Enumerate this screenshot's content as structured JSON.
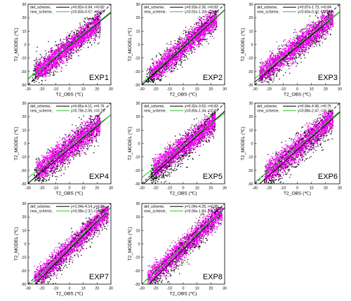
{
  "figure": {
    "colors": {
      "def_points": "#000000",
      "new_points": "#ff00ff",
      "def_line": "#000000",
      "new_line": "#22cc22",
      "one_to_one": "#000000",
      "frame": "#000000"
    },
    "legend_placement": "top-left",
    "tick_labels": {
      "x": [
        "-30",
        "-20",
        "-10",
        "0",
        "10",
        "20",
        "30"
      ],
      "y": [
        "-30",
        "-20",
        "-10",
        "0",
        "10",
        "20",
        "30"
      ]
    }
  },
  "chart_data": [
    {
      "type": "scatter",
      "panel": "EXP1",
      "label": "EXP1",
      "xlabel": "T2_OBS (℃)",
      "ylabel": "T2_MODEL (℃)",
      "xlim": [
        -30,
        30
      ],
      "ylim": [
        -30,
        30
      ],
      "reference_line": "y=x (dashed)",
      "grid": false,
      "legend": "top-left",
      "series": [
        {
          "name": "def_scheme",
          "color": "#000000",
          "equation": "y=0.82x-0.94, r=0.82",
          "slope": 0.82,
          "intercept": -0.94,
          "r": 0.82,
          "x_range": [
            -27,
            22
          ],
          "y_range": [
            -28,
            26
          ]
        },
        {
          "name": "new_scheme",
          "color": "#ff00ff",
          "equation": "y=0.83x-0.57, r=0.89",
          "slope": 0.83,
          "intercept": -0.57,
          "r": 0.89,
          "x_range": [
            -25,
            22
          ],
          "y_range": [
            -24,
            25
          ]
        }
      ]
    },
    {
      "type": "scatter",
      "panel": "EXP2",
      "label": "EXP2",
      "xlabel": "T2_OBS (℃)",
      "ylabel": "T2_MODEL (℃)",
      "xlim": [
        -30,
        30
      ],
      "ylim": [
        -30,
        30
      ],
      "reference_line": "y=x (dashed)",
      "grid": false,
      "legend": "top-left",
      "series": [
        {
          "name": "def_scheme",
          "color": "#000000",
          "equation": "y=0.93x-2.26, r=0.82",
          "slope": 0.93,
          "intercept": -2.26,
          "r": 0.82,
          "x_range": [
            -27,
            24
          ],
          "y_range": [
            -28,
            26
          ]
        },
        {
          "name": "new_scheme",
          "color": "#ff00ff",
          "equation": "y=0.91x-1.32, r=0.88",
          "slope": 0.91,
          "intercept": -1.32,
          "r": 0.88,
          "x_range": [
            -25,
            24
          ],
          "y_range": [
            -25,
            26
          ]
        }
      ]
    },
    {
      "type": "scatter",
      "panel": "EXP3",
      "label": "EXP3",
      "xlabel": "T2_OBS (℃)",
      "ylabel": "T2_MODEL (℃)",
      "xlim": [
        -30,
        30
      ],
      "ylim": [
        -30,
        30
      ],
      "reference_line": "y=x (dashed)",
      "grid": false,
      "legend": "top-left",
      "series": [
        {
          "name": "def_scheme",
          "color": "#000000",
          "equation": "y=0.87x-1.73, r=0.84",
          "slope": 0.87,
          "intercept": -1.73,
          "r": 0.84,
          "x_range": [
            -27,
            25
          ],
          "y_range": [
            -28,
            26
          ]
        },
        {
          "name": "new_scheme",
          "color": "#ff00ff",
          "equation": "y=0.83x-0.42, r=0.85",
          "slope": 0.83,
          "intercept": -0.42,
          "r": 0.85,
          "x_range": [
            -27,
            25
          ],
          "y_range": [
            -27,
            26
          ]
        }
      ]
    },
    {
      "type": "scatter",
      "panel": "EXP4",
      "label": "EXP4",
      "xlabel": "T2_OBS (℃)",
      "ylabel": "T2_MODEL (℃)",
      "xlim": [
        -30,
        30
      ],
      "ylim": [
        -30,
        30
      ],
      "reference_line": "y=x (dashed)",
      "grid": false,
      "legend": "top-left",
      "series": [
        {
          "name": "def_scheme",
          "color": "#000000",
          "equation": "y=0.85x-4.11, r=0.76",
          "slope": 0.85,
          "intercept": -4.11,
          "r": 0.76,
          "x_range": [
            -26,
            22
          ],
          "y_range": [
            -28,
            22
          ]
        },
        {
          "name": "new_scheme",
          "color": "#ff00ff",
          "equation": "y=0.78x-2.05, r=0.78",
          "slope": 0.78,
          "intercept": -2.05,
          "r": 0.78,
          "x_range": [
            -24,
            22
          ],
          "y_range": [
            -25,
            22
          ]
        }
      ]
    },
    {
      "type": "scatter",
      "panel": "EXP5",
      "label": "EXP5",
      "xlabel": "T2_OBS (℃)",
      "ylabel": "T2_MODEL (℃)",
      "xlim": [
        -30,
        30
      ],
      "ylim": [
        -30,
        30
      ],
      "reference_line": "y=x (dashed)",
      "grid": false,
      "legend": "top-left",
      "series": [
        {
          "name": "def_scheme",
          "color": "#000000",
          "equation": "y=0.92x-3.63, r=0.83",
          "slope": 0.92,
          "intercept": -3.63,
          "r": 0.83,
          "x_range": [
            -24,
            23
          ],
          "y_range": [
            -30,
            24
          ]
        },
        {
          "name": "new_scheme",
          "color": "#ff00ff",
          "equation": "y=0.80x-1.34, r=0.87",
          "slope": 0.8,
          "intercept": -1.34,
          "r": 0.87,
          "x_range": [
            -22,
            23
          ],
          "y_range": [
            -24,
            24
          ]
        }
      ]
    },
    {
      "type": "scatter",
      "panel": "EXP6",
      "label": "EXP6",
      "xlabel": "T2_OBS (℃)",
      "ylabel": "T2_MODEL (℃)",
      "xlim": [
        -30,
        30
      ],
      "ylim": [
        -30,
        30
      ],
      "reference_line": "y=x (dashed)",
      "grid": false,
      "legend": "top-left",
      "series": [
        {
          "name": "def_scheme",
          "color": "#000000",
          "equation": "y=0.94x-4.96, r=0.75",
          "slope": 0.94,
          "intercept": -4.96,
          "r": 0.75,
          "x_range": [
            -24,
            25
          ],
          "y_range": [
            -30,
            25
          ]
        },
        {
          "name": "new_scheme",
          "color": "#ff00ff",
          "equation": "y=0.88x-2.47, r=0.78",
          "slope": 0.88,
          "intercept": -2.47,
          "r": 0.78,
          "x_range": [
            -23,
            25
          ],
          "y_range": [
            -27,
            25
          ]
        }
      ]
    },
    {
      "type": "scatter",
      "panel": "EXP7",
      "label": "EXP7",
      "xlabel": "T2_OBS (℃)",
      "ylabel": "T2_MODEL (℃)",
      "xlim": [
        -30,
        30
      ],
      "ylim": [
        -30,
        30
      ],
      "reference_line": "y=x (dashed)",
      "grid": false,
      "legend": "top-left",
      "series": [
        {
          "name": "def_scheme",
          "color": "#000000",
          "equation": "y=1.04x-4.14, r=0.88",
          "slope": 1.04,
          "intercept": -4.14,
          "r": 0.88,
          "x_range": [
            -26,
            28
          ],
          "y_range": [
            -30,
            28
          ]
        },
        {
          "name": "new_scheme",
          "color": "#ff00ff",
          "equation": "y=0.98x-2.37, r=0.89",
          "slope": 0.98,
          "intercept": -2.37,
          "r": 0.89,
          "x_range": [
            -26,
            28
          ],
          "y_range": [
            -28,
            28
          ]
        }
      ]
    },
    {
      "type": "scatter",
      "panel": "EXP8",
      "label": "EXP8",
      "xlabel": "T2_OBS (℃)",
      "ylabel": "T2_MODEL (℃)",
      "xlim": [
        -30,
        30
      ],
      "ylim": [
        -30,
        30
      ],
      "reference_line": "y=x (dashed)",
      "grid": false,
      "legend": "top-left",
      "series": [
        {
          "name": "def_scheme",
          "color": "#000000",
          "equation": "y=1.04x-4.25, r=0.85",
          "slope": 1.04,
          "intercept": -4.25,
          "r": 0.85,
          "x_range": [
            -26,
            28
          ],
          "y_range": [
            -30,
            28
          ]
        },
        {
          "name": "new_scheme",
          "color": "#ff00ff",
          "equation": "y=0.94x-1.84, r=0.86",
          "slope": 0.94,
          "intercept": -1.84,
          "r": 0.86,
          "x_range": [
            -26,
            28
          ],
          "y_range": [
            -28,
            28
          ]
        }
      ]
    }
  ]
}
